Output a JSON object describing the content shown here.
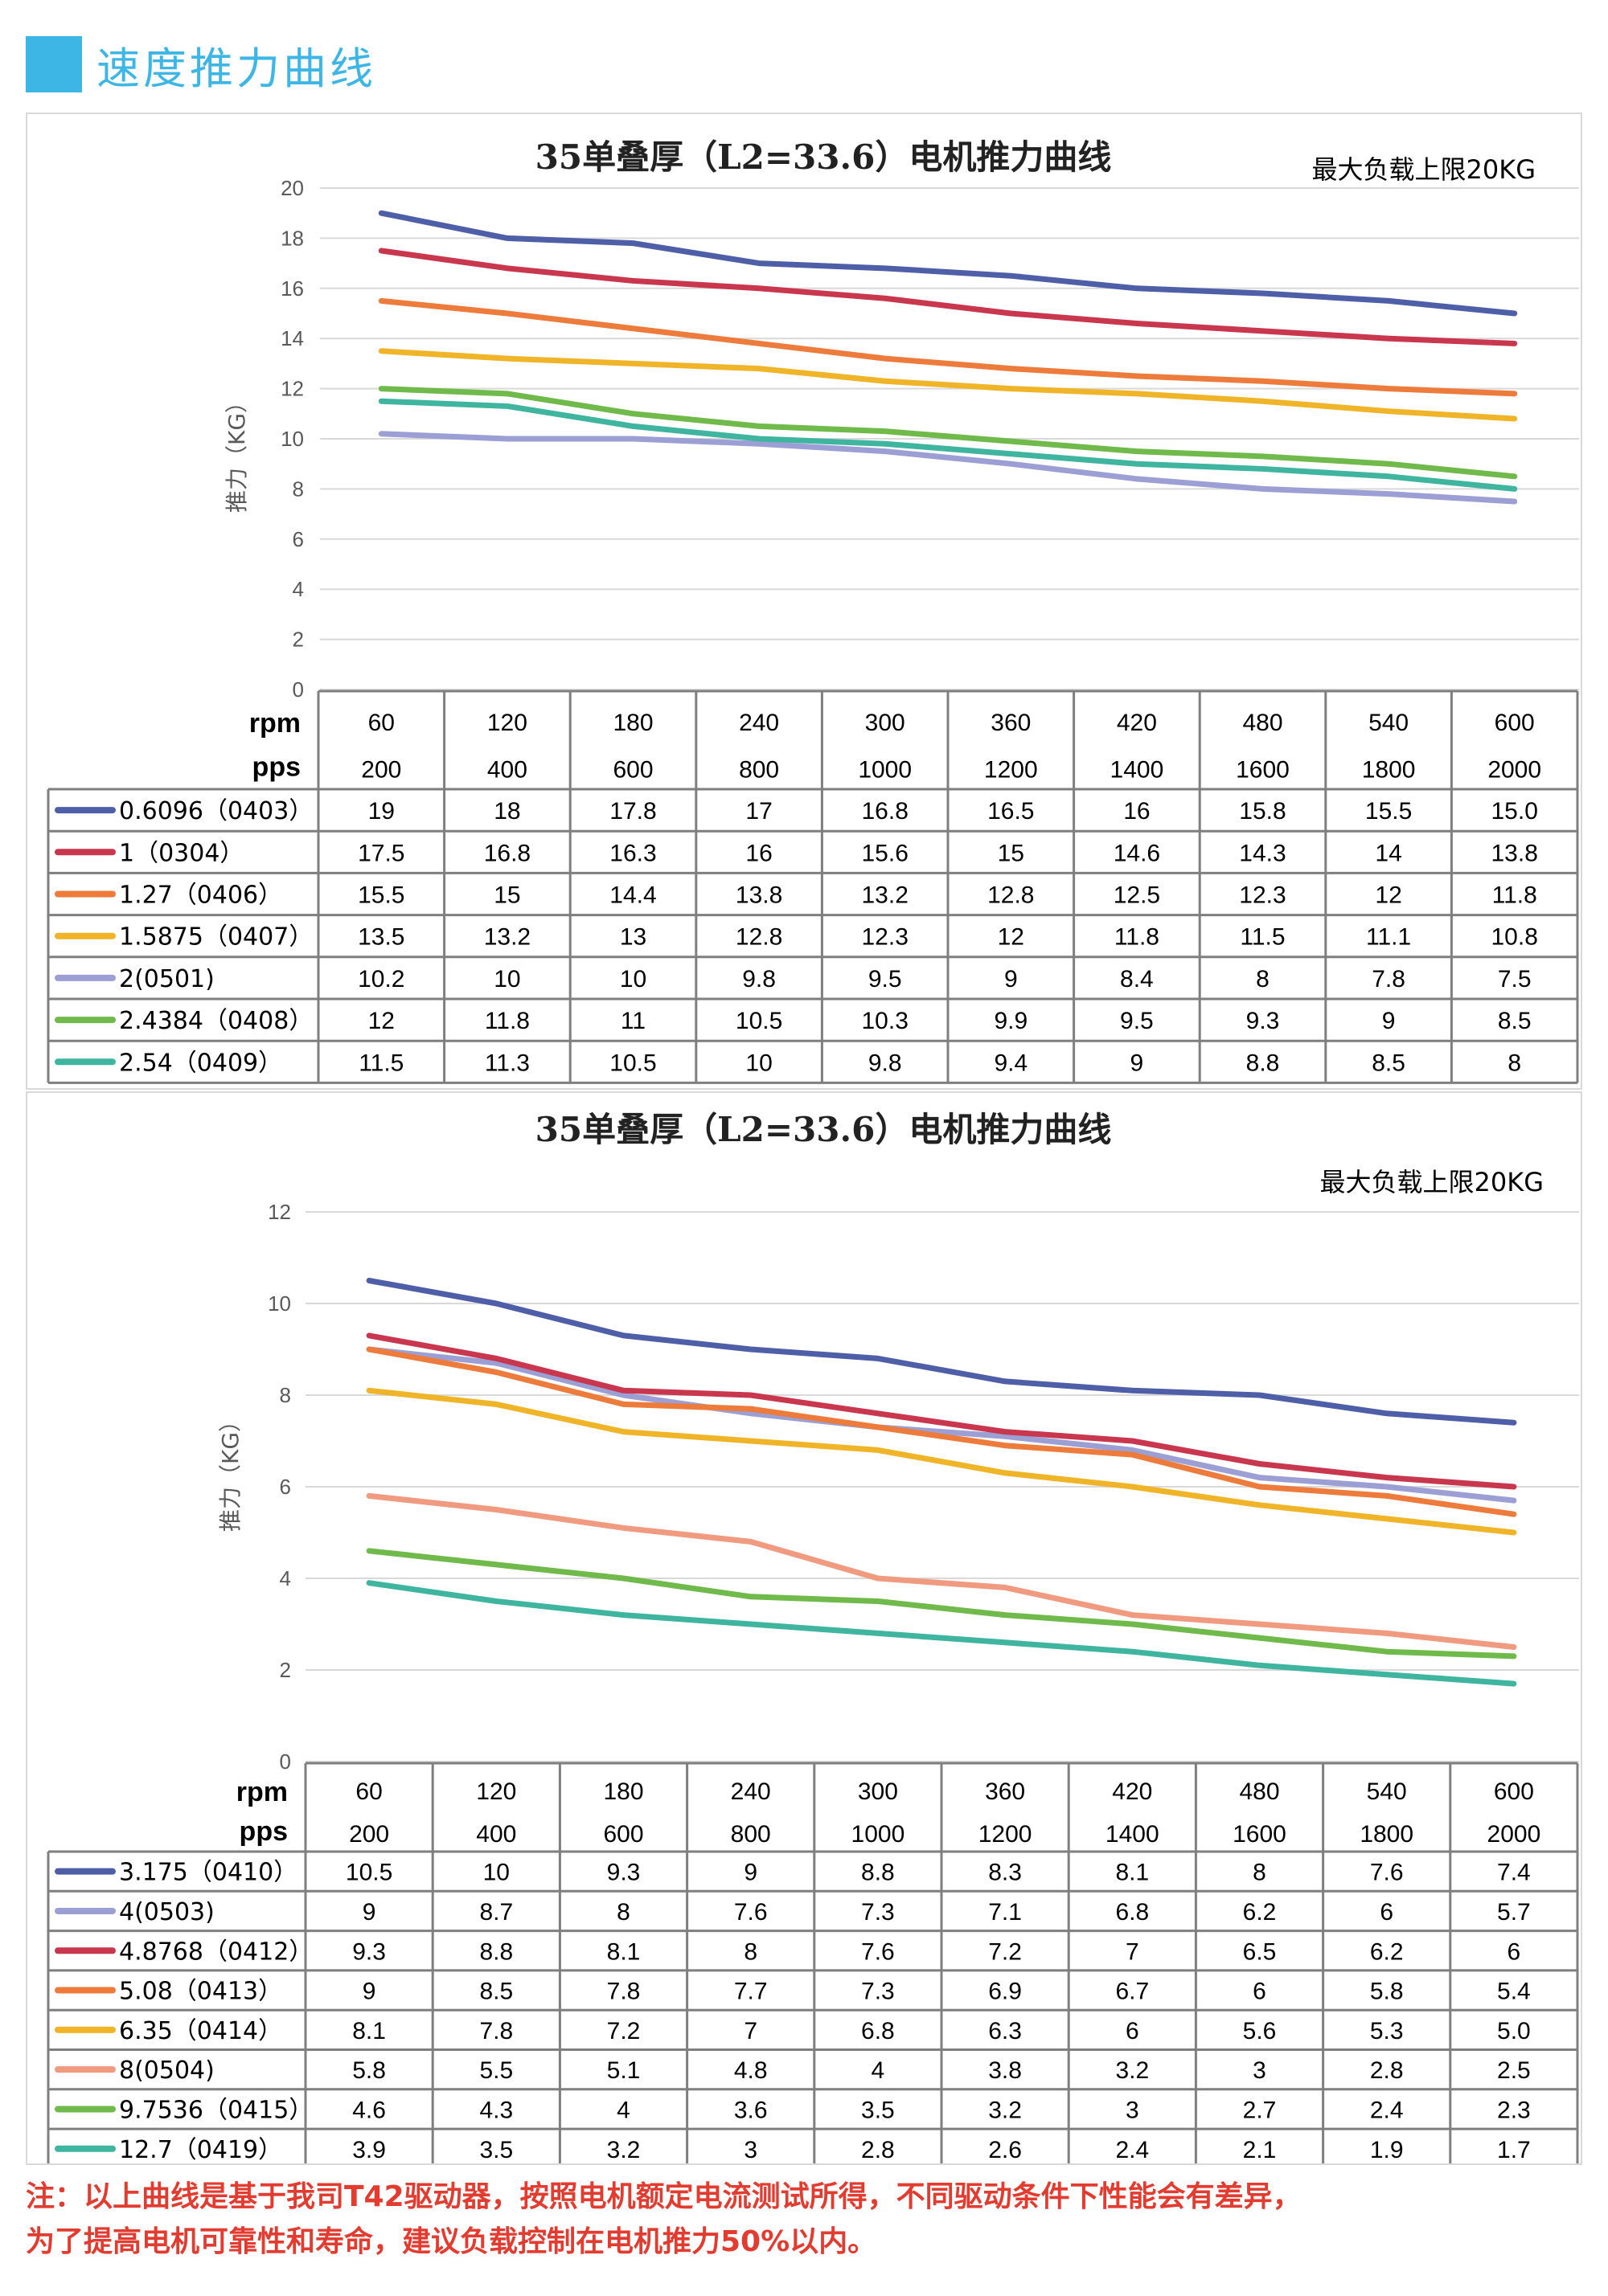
{
  "header": {
    "title": "速度推力曲线"
  },
  "chart_data": [
    {
      "type": "line",
      "title": "35单叠厚（L2=33.6）电机推力曲线",
      "note": "最大负载上限20KG",
      "ylabel": "推力（KG）",
      "ylim": [
        0,
        20
      ],
      "yticks": [
        0,
        2,
        4,
        6,
        8,
        10,
        12,
        14,
        16,
        18,
        20
      ],
      "row_labels": [
        "rpm",
        "pps"
      ],
      "categories_rpm": [
        "60",
        "120",
        "180",
        "240",
        "300",
        "360",
        "420",
        "480",
        "540",
        "600"
      ],
      "categories_pps": [
        "200",
        "400",
        "600",
        "800",
        "1000",
        "1200",
        "1400",
        "1600",
        "1800",
        "2000"
      ],
      "series": [
        {
          "name": "0.6096（0403）",
          "color": "#4e5fa8",
          "values": [
            19,
            18,
            17.8,
            17,
            16.8,
            16.5,
            16,
            15.8,
            15.5,
            15.0
          ],
          "labels": [
            "19",
            "18",
            "17.8",
            "17",
            "16.8",
            "16.5",
            "16",
            "15.8",
            "15.5",
            "15.0"
          ]
        },
        {
          "name": "1（0304）",
          "color": "#c8374e",
          "values": [
            17.5,
            16.8,
            16.3,
            16,
            15.6,
            15,
            14.6,
            14.3,
            14,
            13.8
          ],
          "labels": [
            "17.5",
            "16.8",
            "16.3",
            "16",
            "15.6",
            "15",
            "14.6",
            "14.3",
            "14",
            "13.8"
          ]
        },
        {
          "name": "1.27（0406）",
          "color": "#ec7b3c",
          "values": [
            15.5,
            15,
            14.4,
            13.8,
            13.2,
            12.8,
            12.5,
            12.3,
            12,
            11.8
          ],
          "labels": [
            "15.5",
            "15",
            "14.4",
            "13.8",
            "13.2",
            "12.8",
            "12.5",
            "12.3",
            "12",
            "11.8"
          ]
        },
        {
          "name": "1.5875（0407）",
          "color": "#f0b429",
          "values": [
            13.5,
            13.2,
            13,
            12.8,
            12.3,
            12,
            11.8,
            11.5,
            11.1,
            10.8
          ],
          "labels": [
            "13.5",
            "13.2",
            "13",
            "12.8",
            "12.3",
            "12",
            "11.8",
            "11.5",
            "11.1",
            "10.8"
          ]
        },
        {
          "name": "2(0501)",
          "color": "#9b9fd4",
          "values": [
            10.2,
            10,
            10,
            9.8,
            9.5,
            9,
            8.4,
            8,
            7.8,
            7.5
          ],
          "labels": [
            "10.2",
            "10",
            "10",
            "9.8",
            "9.5",
            "9",
            "8.4",
            "8",
            "7.8",
            "7.5"
          ]
        },
        {
          "name": "2.4384（0408）",
          "color": "#6fba4b",
          "values": [
            12,
            11.8,
            11,
            10.5,
            10.3,
            9.9,
            9.5,
            9.3,
            9,
            8.5
          ],
          "labels": [
            "12",
            "11.8",
            "11",
            "10.5",
            "10.3",
            "9.9",
            "9.5",
            "9.3",
            "9",
            "8.5"
          ]
        },
        {
          "name": "2.54（0409）",
          "color": "#3fb5a0",
          "values": [
            11.5,
            11.3,
            10.5,
            10,
            9.8,
            9.4,
            9,
            8.8,
            8.5,
            8
          ],
          "labels": [
            "11.5",
            "11.3",
            "10.5",
            "10",
            "9.8",
            "9.4",
            "9",
            "8.8",
            "8.5",
            "8"
          ]
        }
      ]
    },
    {
      "type": "line",
      "title": "35单叠厚（L2=33.6）电机推力曲线",
      "note": "最大负载上限20KG",
      "ylabel": "推力（KG）",
      "ylim": [
        0,
        12
      ],
      "yticks": [
        0,
        2,
        4,
        6,
        8,
        10,
        12
      ],
      "row_labels": [
        "rpm",
        "pps"
      ],
      "categories_rpm": [
        "60",
        "120",
        "180",
        "240",
        "300",
        "360",
        "420",
        "480",
        "540",
        "600"
      ],
      "categories_pps": [
        "200",
        "400",
        "600",
        "800",
        "1000",
        "1200",
        "1400",
        "1600",
        "1800",
        "2000"
      ],
      "series": [
        {
          "name": "3.175（0410）",
          "color": "#4e5fa8",
          "values": [
            10.5,
            10,
            9.3,
            9,
            8.8,
            8.3,
            8.1,
            8,
            7.6,
            7.4
          ],
          "labels": [
            "10.5",
            "10",
            "9.3",
            "9",
            "8.8",
            "8.3",
            "8.1",
            "8",
            "7.6",
            "7.4"
          ]
        },
        {
          "name": "4(0503)",
          "color": "#9b9fd4",
          "values": [
            9,
            8.7,
            8,
            7.6,
            7.3,
            7.1,
            6.8,
            6.2,
            6,
            5.7
          ],
          "labels": [
            "9",
            "8.7",
            "8",
            "7.6",
            "7.3",
            "7.1",
            "6.8",
            "6.2",
            "6",
            "5.7"
          ]
        },
        {
          "name": "4.8768（0412）",
          "color": "#c8374e",
          "values": [
            9.3,
            8.8,
            8.1,
            8,
            7.6,
            7.2,
            7,
            6.5,
            6.2,
            6
          ],
          "labels": [
            "9.3",
            "8.8",
            "8.1",
            "8",
            "7.6",
            "7.2",
            "7",
            "6.5",
            "6.2",
            "6"
          ]
        },
        {
          "name": "5.08（0413）",
          "color": "#ec7b3c",
          "values": [
            9,
            8.5,
            7.8,
            7.7,
            7.3,
            6.9,
            6.7,
            6,
            5.8,
            5.4
          ],
          "labels": [
            "9",
            "8.5",
            "7.8",
            "7.7",
            "7.3",
            "6.9",
            "6.7",
            "6",
            "5.8",
            "5.4"
          ]
        },
        {
          "name": "6.35（0414）",
          "color": "#f0b429",
          "values": [
            8.1,
            7.8,
            7.2,
            7,
            6.8,
            6.3,
            6,
            5.6,
            5.3,
            5.0
          ],
          "labels": [
            "8.1",
            "7.8",
            "7.2",
            "7",
            "6.8",
            "6.3",
            "6",
            "5.6",
            "5.3",
            "5.0"
          ]
        },
        {
          "name": "8(0504)",
          "color": "#f09a80",
          "values": [
            5.8,
            5.5,
            5.1,
            4.8,
            4,
            3.8,
            3.2,
            3,
            2.8,
            2.5
          ],
          "labels": [
            "5.8",
            "5.5",
            "5.1",
            "4.8",
            "4",
            "3.8",
            "3.2",
            "3",
            "2.8",
            "2.5"
          ]
        },
        {
          "name": "9.7536（0415）",
          "color": "#6fba4b",
          "values": [
            4.6,
            4.3,
            4,
            3.6,
            3.5,
            3.2,
            3,
            2.7,
            2.4,
            2.3
          ],
          "labels": [
            "4.6",
            "4.3",
            "4",
            "3.6",
            "3.5",
            "3.2",
            "3",
            "2.7",
            "2.4",
            "2.3"
          ]
        },
        {
          "name": "12.7（0419）",
          "color": "#3fb5a0",
          "values": [
            3.9,
            3.5,
            3.2,
            3,
            2.8,
            2.6,
            2.4,
            2.1,
            1.9,
            1.7
          ],
          "labels": [
            "3.9",
            "3.5",
            "3.2",
            "3",
            "2.8",
            "2.6",
            "2.4",
            "2.1",
            "1.9",
            "1.7"
          ]
        }
      ]
    }
  ],
  "footnote": {
    "line1": "注：以上曲线是基于我司T42驱动器，按照电机额定电流测试所得，不同驱动条件下性能会有差异，",
    "line2": "为了提高电机可靠性和寿命，建议负载控制在电机推力50%以内。"
  }
}
